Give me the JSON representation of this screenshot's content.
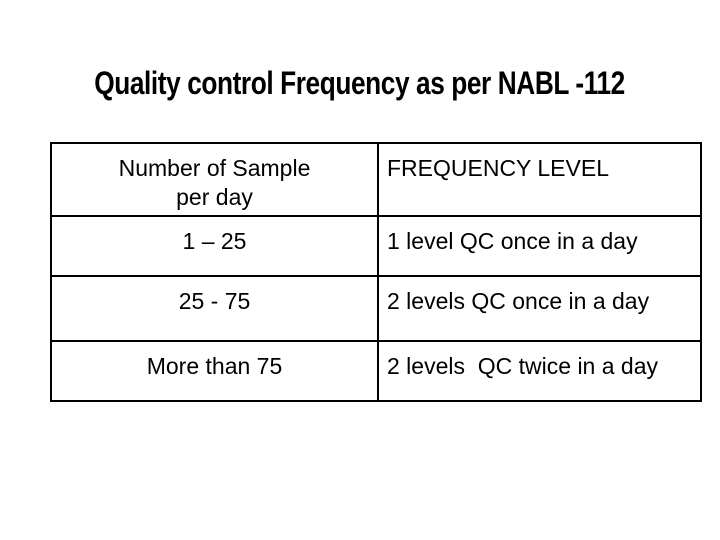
{
  "slide": {
    "title": "Quality control Frequency as per NABL -112",
    "table": {
      "header": {
        "samples_line1": "Number of Sample",
        "samples_line2": "per day",
        "frequency": "FREQUENCY LEVEL"
      },
      "rows": [
        {
          "samples": "1 – 25",
          "frequency": "1 level QC once in a day"
        },
        {
          "samples": "25 - 75",
          "frequency": "2 levels QC once in a day"
        },
        {
          "samples": "More than 75",
          "frequency": "2 levels  QC twice in a day"
        }
      ]
    }
  },
  "colors": {
    "background": "#ffffff",
    "text": "#000000",
    "table_border": "#000000"
  }
}
